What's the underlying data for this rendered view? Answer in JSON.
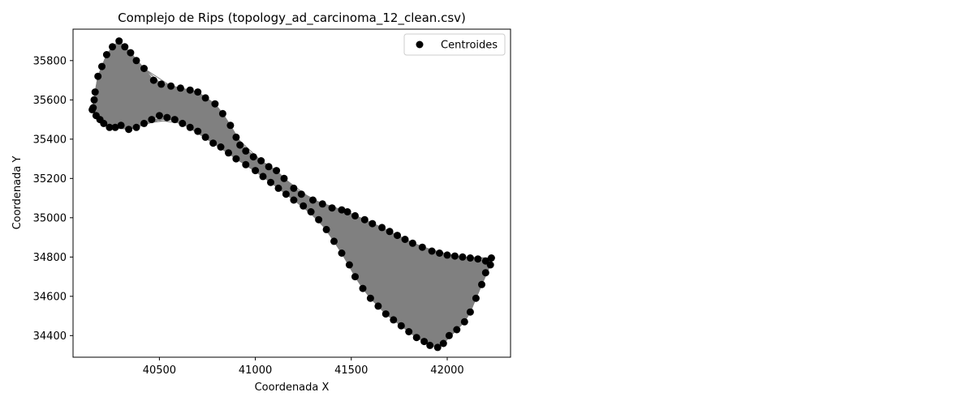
{
  "chart_data": {
    "type": "scatter",
    "title": "Complejo de Rips (topology_ad_carcinoma_12_clean.csv)",
    "xlabel": "Coordenada X",
    "ylabel": "Coordenada Y",
    "xlim": [
      40050,
      42330
    ],
    "ylim": [
      34290,
      35960
    ],
    "xticks": [
      40500,
      41000,
      41500,
      42000
    ],
    "yticks": [
      34400,
      34600,
      34800,
      35000,
      35200,
      35400,
      35600,
      35800
    ],
    "grid": false,
    "legend": {
      "location": "upper right",
      "entries": [
        "Centroides"
      ]
    },
    "complex_color": "#808080",
    "point_color": "#000000",
    "series": [
      {
        "name": "Centroides",
        "x": [
          40155,
          40165,
          40180,
          40200,
          40225,
          40255,
          40290,
          40320,
          40350,
          40380,
          40420,
          40470,
          40510,
          40560,
          40610,
          40660,
          40700,
          40740,
          40790,
          40830,
          40870,
          40900,
          40920,
          40950,
          40990,
          41030,
          41070,
          41110,
          41150,
          41200,
          41240,
          41300,
          41350,
          41400,
          41450,
          41480,
          41520,
          41570,
          41610,
          41660,
          41700,
          41740,
          41780,
          41820,
          41870,
          41920,
          41960,
          42000,
          42040,
          42080,
          42120,
          42160,
          42200,
          42230,
          42225,
          42200,
          42180,
          42150,
          42120,
          42090,
          42050,
          42010,
          41980,
          41950,
          41910,
          41880,
          41840,
          41800,
          41760,
          41720,
          41680,
          41640,
          41600,
          41560,
          41520,
          41490,
          41450,
          41410,
          41370,
          41330,
          41290,
          41250,
          41200,
          41160,
          41120,
          41080,
          41040,
          41000,
          40950,
          40900,
          40860,
          40820,
          40780,
          40740,
          40700,
          40660,
          40620,
          40580,
          40540,
          40500,
          40460,
          40420,
          40380,
          40340,
          40300,
          40270,
          40240,
          40210,
          40190,
          40170,
          40150,
          40160
        ],
        "y": [
          35560,
          35640,
          35720,
          35770,
          35830,
          35870,
          35900,
          35870,
          35840,
          35800,
          35760,
          35700,
          35680,
          35670,
          35660,
          35650,
          35640,
          35610,
          35580,
          35530,
          35470,
          35410,
          35370,
          35340,
          35310,
          35290,
          35260,
          35240,
          35200,
          35150,
          35120,
          35090,
          35070,
          35050,
          35040,
          35030,
          35010,
          34990,
          34970,
          34950,
          34930,
          34910,
          34890,
          34870,
          34850,
          34830,
          34820,
          34810,
          34805,
          34800,
          34795,
          34790,
          34780,
          34795,
          34760,
          34720,
          34660,
          34590,
          34520,
          34470,
          34430,
          34400,
          34360,
          34340,
          34350,
          34370,
          34390,
          34420,
          34450,
          34480,
          34510,
          34550,
          34590,
          34640,
          34700,
          34760,
          34820,
          34880,
          34940,
          34990,
          35030,
          35060,
          35090,
          35120,
          35150,
          35180,
          35210,
          35240,
          35270,
          35300,
          35330,
          35360,
          35380,
          35410,
          35440,
          35460,
          35480,
          35500,
          35510,
          35520,
          35500,
          35480,
          35460,
          35450,
          35470,
          35460,
          35460,
          35480,
          35500,
          35520,
          35550,
          35600
        ]
      }
    ]
  }
}
